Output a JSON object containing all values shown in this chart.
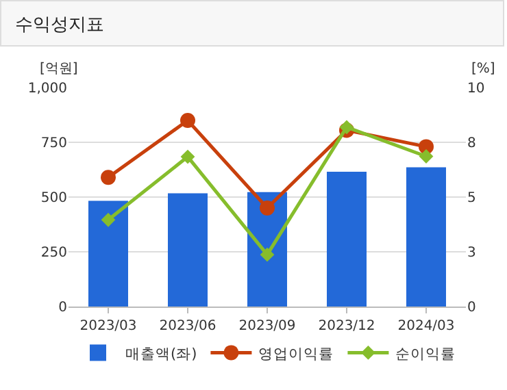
{
  "chart_data": {
    "type": "bar",
    "title": "수익성지표",
    "ylabel": "[억원]",
    "y2label": "[%]",
    "categories": [
      "2023/03",
      "2023/06",
      "2023/09",
      "2023/12",
      "2024/03"
    ],
    "series": [
      {
        "name": "매출액(좌)",
        "color": "#2369d8",
        "values": [
          483,
          517,
          523,
          616,
          636
        ]
      },
      {
        "name": "영업이익률",
        "type": "line",
        "axis": "y2",
        "marker": "circle",
        "color": "#c8400c",
        "values": [
          5.9,
          8.5,
          4.5,
          8.05,
          7.3
        ]
      },
      {
        "name": "순이익률",
        "type": "line",
        "axis": "y2",
        "marker": "diamond",
        "color": "#86bd2c",
        "values": [
          3.96,
          6.84,
          2.37,
          8.19,
          6.86
        ]
      }
    ],
    "ylim": [
      0,
      1000
    ],
    "yticks": [
      0,
      250,
      500,
      750,
      {
        "value": 1000,
        "label": "1,000"
      }
    ],
    "y2lim": [
      0,
      10
    ],
    "y2ticks": [
      0,
      {
        "value": 2.5,
        "label": "3"
      },
      5,
      {
        "value": 7.5,
        "label": "8"
      },
      10
    ],
    "grid": "y",
    "legend": "bottom"
  }
}
